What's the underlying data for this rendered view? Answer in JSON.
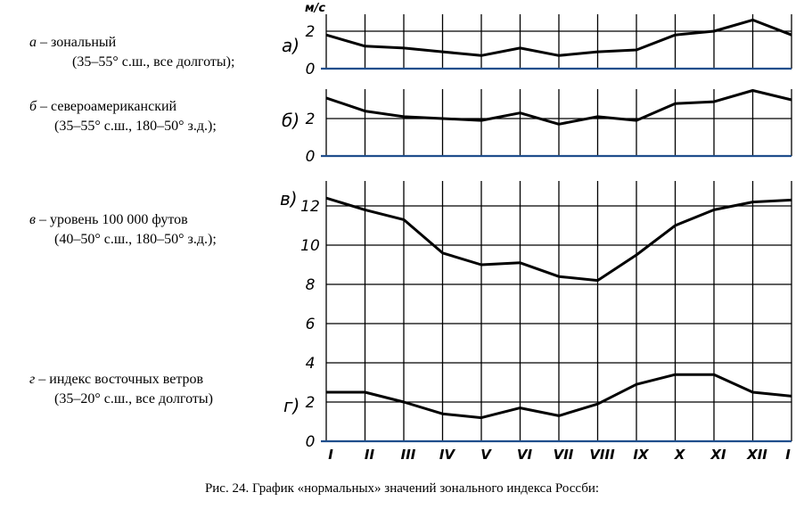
{
  "legend": [
    {
      "letter": "а",
      "text": " – зональный",
      "detail": "(35–55° с.ш., все долготы);"
    },
    {
      "letter": "б",
      "text": " – североамериканский",
      "detail": "(35–55° с.ш., 180–50° з.д.);"
    },
    {
      "letter": "в",
      "text": " – уровень 100 000 футов",
      "detail": "(40–50° с.ш., 180–50° з.д.);"
    },
    {
      "letter": "г",
      "text": " – индекс восточных ветров",
      "detail": "(35–20° с.ш., все долготы)"
    }
  ],
  "caption": "Рис. 24. График «нормальных» значений зонального индекса Россби:",
  "chart_data": {
    "type": "line",
    "unit_label": "м/с",
    "colors": {
      "line": "#000000",
      "zero_line": "#1f4e8c",
      "grid": "#000000"
    },
    "x": [
      "I",
      "II",
      "III",
      "IV",
      "V",
      "VI",
      "VII",
      "VIII",
      "IX",
      "X",
      "XI",
      "XII",
      "I"
    ],
    "panels": [
      {
        "label": "а)",
        "yticks": [
          0,
          2
        ],
        "ylim": [
          0,
          2
        ],
        "values": [
          1.8,
          1.2,
          1.1,
          0.9,
          0.7,
          1.1,
          0.7,
          0.9,
          1.0,
          1.8,
          2.0,
          2.6,
          1.8
        ]
      },
      {
        "label": "б)",
        "yticks": [
          0,
          2
        ],
        "ylim": [
          0,
          3.6
        ],
        "values": [
          3.1,
          2.4,
          2.1,
          2.0,
          1.9,
          2.3,
          1.7,
          2.1,
          1.9,
          2.8,
          2.9,
          3.5,
          3.0
        ]
      },
      {
        "label": "в)",
        "yticks": [
          0,
          2,
          4,
          6,
          8,
          10,
          12
        ],
        "ylim": [
          0,
          12
        ],
        "values": [
          12.4,
          11.8,
          11.3,
          9.6,
          9.0,
          9.1,
          8.4,
          8.2,
          9.5,
          11.0,
          11.8,
          12.2,
          12.3
        ]
      },
      {
        "label": "г)",
        "ylim": [
          0,
          4
        ],
        "values": [
          2.5,
          2.5,
          2.0,
          1.4,
          1.2,
          1.7,
          1.3,
          1.9,
          2.9,
          3.4,
          3.4,
          2.5,
          2.3
        ]
      }
    ]
  }
}
